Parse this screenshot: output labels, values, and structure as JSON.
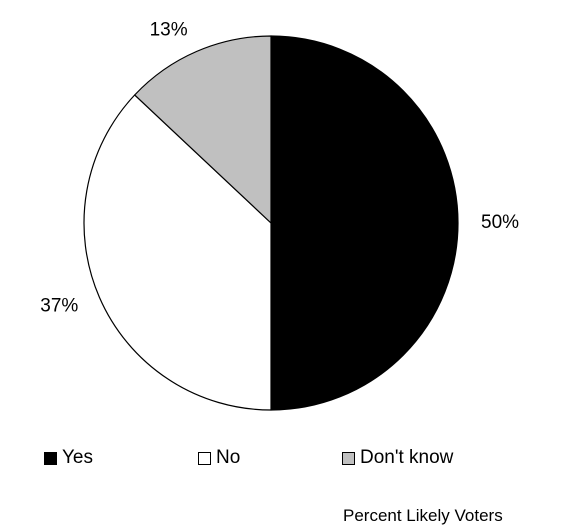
{
  "chart_data": {
    "type": "pie",
    "slices": [
      {
        "label": "Yes",
        "value": 50,
        "value_label": "50%",
        "color": "#000000"
      },
      {
        "label": "No",
        "value": 37,
        "value_label": "37%",
        "color": "#ffffff"
      },
      {
        "label": "Don't know",
        "value": 13,
        "value_label": "13%",
        "color": "#c0c0c0"
      }
    ],
    "start_angle": "12 o'clock",
    "direction": "clockwise",
    "legend_position": "bottom",
    "title": "",
    "note": "Percent Likely Voters"
  }
}
